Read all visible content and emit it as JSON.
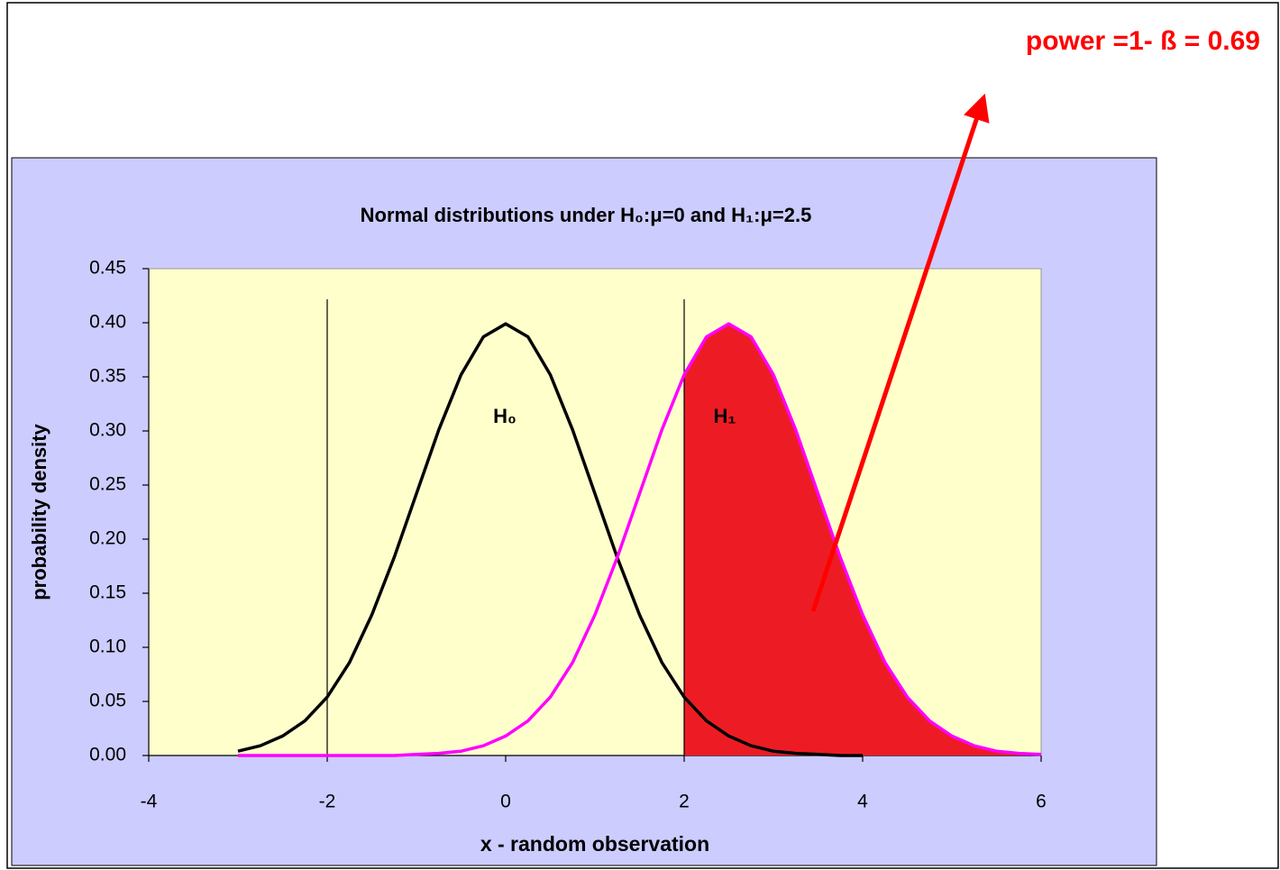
{
  "chart_data": {
    "type": "line",
    "title": "Normal distributions under H₀:μ=0 and H₁:μ=2.5",
    "xlabel": "x -  random observation",
    "ylabel": "probability density",
    "annotation": "power =1- ß = 0.69",
    "x": [
      -3,
      -2.75,
      -2.5,
      -2.25,
      -2,
      -1.75,
      -1.5,
      -1.25,
      -1,
      -0.75,
      -0.5,
      -0.25,
      0,
      0.25,
      0.5,
      0.75,
      1,
      1.25,
      1.5,
      1.75,
      2,
      2.25,
      2.5,
      2.75,
      3,
      3.25,
      3.5,
      3.75,
      4,
      4.25,
      4.5,
      4.75,
      5,
      5.25,
      5.5,
      5.75,
      6
    ],
    "series": [
      {
        "name": "H₀",
        "color": "#000000",
        "values": [
          0.004,
          0.009,
          0.018,
          0.032,
          0.054,
          0.086,
          0.13,
          0.183,
          0.242,
          0.301,
          0.352,
          0.387,
          0.399,
          0.387,
          0.352,
          0.301,
          0.242,
          0.183,
          0.13,
          0.086,
          0.054,
          0.032,
          0.018,
          0.009,
          0.004,
          0.002,
          0.001,
          0,
          0,
          null,
          null,
          null,
          null,
          null,
          null,
          null,
          null
        ]
      },
      {
        "name": "H₁",
        "color": "#ff00ff",
        "shade_from": 2,
        "shade_color": "#ed1c24",
        "values": [
          0,
          0,
          0,
          0,
          0,
          0,
          0,
          0,
          0.001,
          0.002,
          0.004,
          0.009,
          0.018,
          0.032,
          0.054,
          0.086,
          0.13,
          0.183,
          0.242,
          0.301,
          0.352,
          0.387,
          0.399,
          0.387,
          0.352,
          0.301,
          0.242,
          0.183,
          0.13,
          0.086,
          0.054,
          0.032,
          0.018,
          0.009,
          0.004,
          0.002,
          0.001
        ]
      }
    ],
    "vlines": [
      -2,
      2
    ],
    "xlim": [
      -4,
      6
    ],
    "xticks": [
      -4,
      -2,
      0,
      2,
      4,
      6
    ],
    "ylim": [
      0,
      0.45
    ],
    "yticks": [
      {
        "value": 0,
        "label": "0.00"
      },
      0.05,
      {
        "value": 0.1,
        "label": "0.10"
      },
      0.15,
      {
        "value": 0.2,
        "label": "0.20"
      },
      0.25,
      {
        "value": 0.3,
        "label": "0.30"
      },
      0.35,
      {
        "value": 0.4,
        "label": "0.40"
      },
      0.45
    ],
    "grid": false
  }
}
